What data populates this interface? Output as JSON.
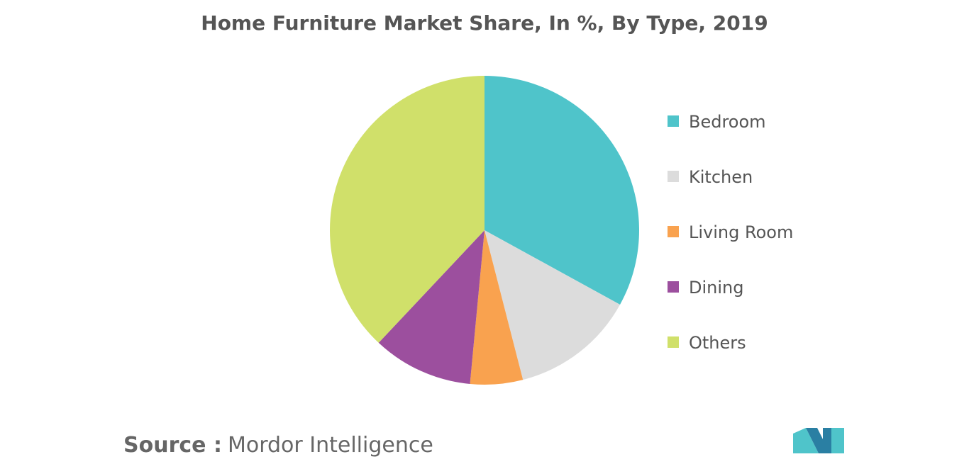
{
  "chart_data": {
    "type": "pie",
    "title": "Home Furniture Market Share, In %, By Type, 2019",
    "categories": [
      "Bedroom",
      "Kitchen",
      "Living Room",
      "Dining",
      "Others"
    ],
    "values": [
      33,
      13,
      5.5,
      10.5,
      38
    ],
    "colors": [
      "#4fc4ca",
      "#dcdcdc",
      "#f9a24f",
      "#9c4f9e",
      "#d0e06a"
    ],
    "legend": "right",
    "source_label": "Source :",
    "source": "Mordor Intelligence"
  }
}
